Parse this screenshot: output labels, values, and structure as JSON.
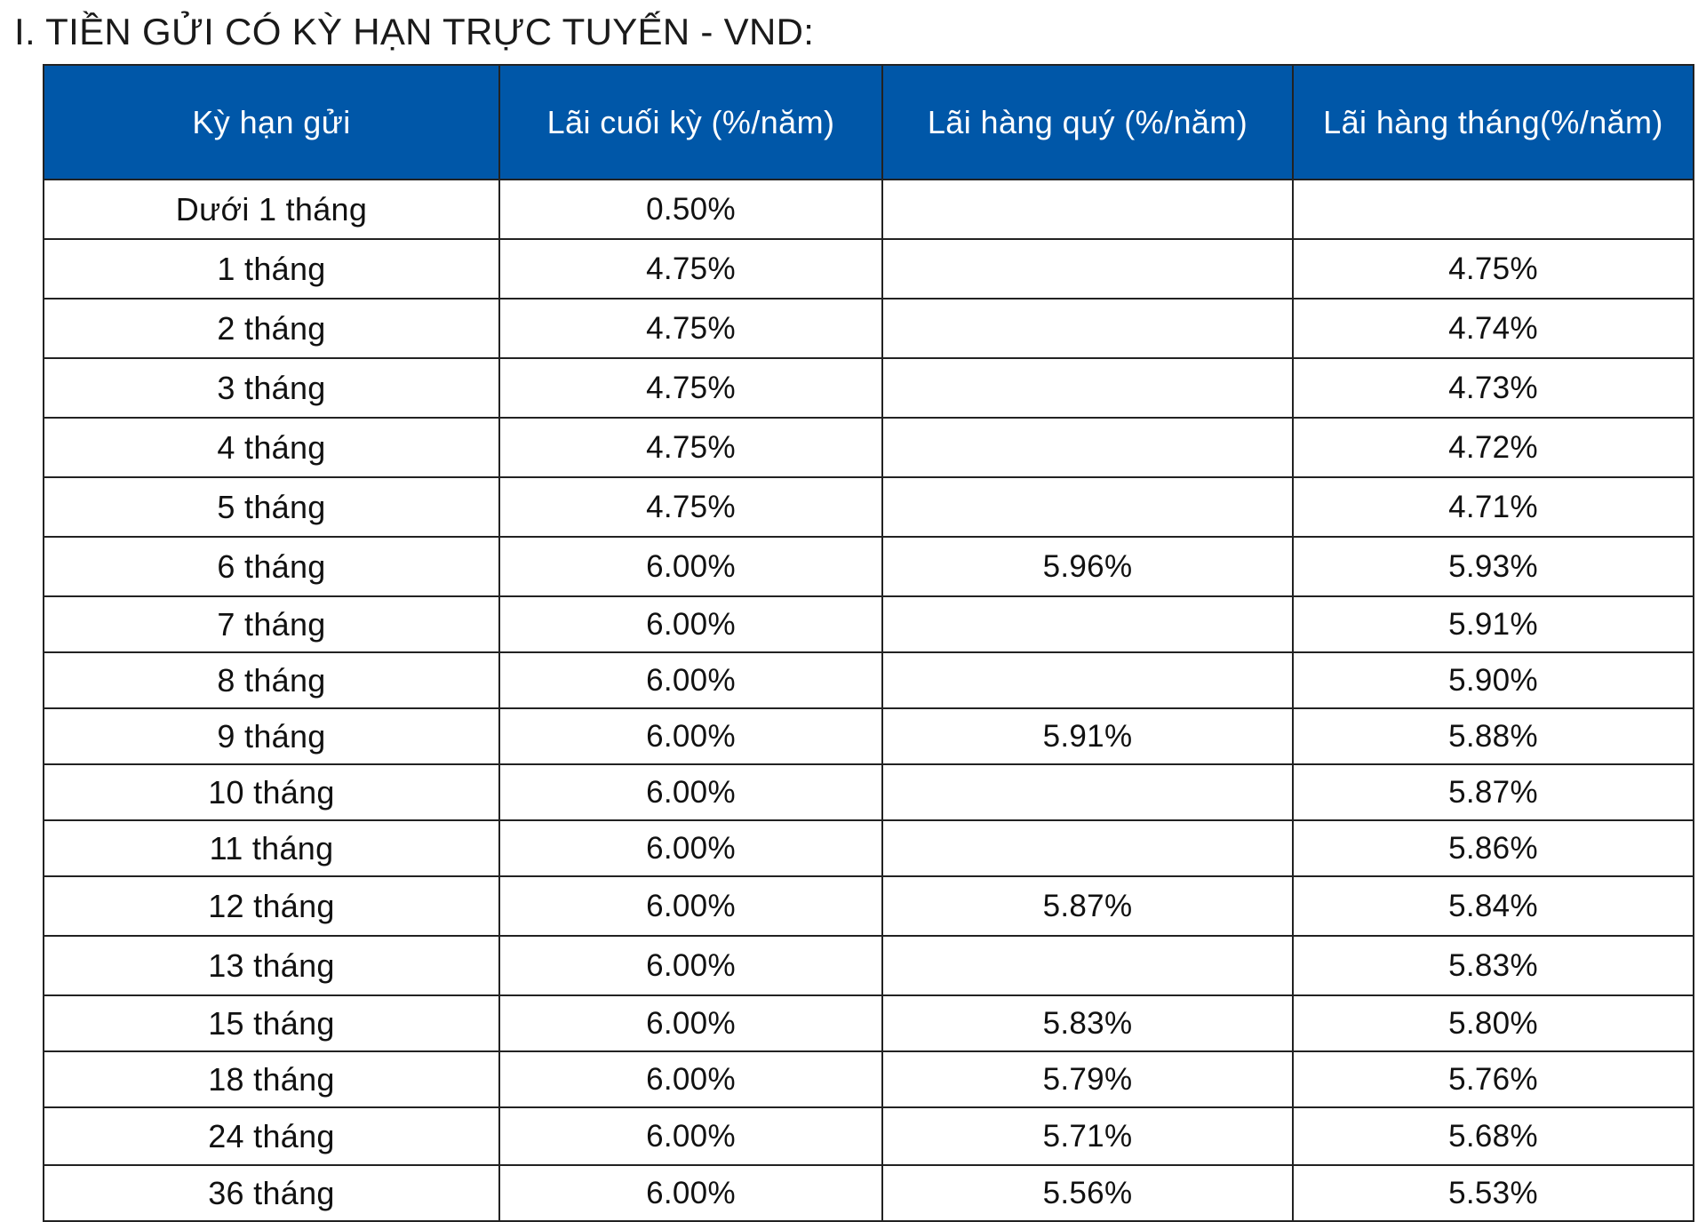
{
  "title": "I. TIỀN GỬI CÓ KỲ HẠN TRỰC TUYẾN - VND:",
  "table": {
    "headers": [
      "Kỳ hạn gửi",
      "Lãi cuối kỳ (%/năm)",
      "Lãi hàng quý (%/năm)",
      "Lãi hàng tháng(%/năm)"
    ],
    "rows": [
      {
        "term": "Dưới 1 tháng",
        "end_of_term": "0.50%",
        "quarterly": "",
        "monthly": ""
      },
      {
        "term": "1 tháng",
        "end_of_term": "4.75%",
        "quarterly": "",
        "monthly": "4.75%"
      },
      {
        "term": "2 tháng",
        "end_of_term": "4.75%",
        "quarterly": "",
        "monthly": "4.74%"
      },
      {
        "term": "3 tháng",
        "end_of_term": "4.75%",
        "quarterly": "",
        "monthly": "4.73%"
      },
      {
        "term": "4 tháng",
        "end_of_term": "4.75%",
        "quarterly": "",
        "monthly": "4.72%"
      },
      {
        "term": "5 tháng",
        "end_of_term": "4.75%",
        "quarterly": "",
        "monthly": "4.71%"
      },
      {
        "term": "6 tháng",
        "end_of_term": "6.00%",
        "quarterly": "5.96%",
        "monthly": "5.93%"
      },
      {
        "term": "7 tháng",
        "end_of_term": "6.00%",
        "quarterly": "",
        "monthly": "5.91%"
      },
      {
        "term": "8 tháng",
        "end_of_term": "6.00%",
        "quarterly": "",
        "monthly": "5.90%"
      },
      {
        "term": "9 tháng",
        "end_of_term": "6.00%",
        "quarterly": "5.91%",
        "monthly": "5.88%"
      },
      {
        "term": "10 tháng",
        "end_of_term": "6.00%",
        "quarterly": "",
        "monthly": "5.87%"
      },
      {
        "term": "11 tháng",
        "end_of_term": "6.00%",
        "quarterly": "",
        "monthly": "5.86%"
      },
      {
        "term": "12 tháng",
        "end_of_term": "6.00%",
        "quarterly": "5.87%",
        "monthly": "5.84%"
      },
      {
        "term": "13 tháng",
        "end_of_term": "6.00%",
        "quarterly": "",
        "monthly": "5.83%"
      },
      {
        "term": "15 tháng",
        "end_of_term": "6.00%",
        "quarterly": "5.83%",
        "monthly": "5.80%"
      },
      {
        "term": "18 tháng",
        "end_of_term": "6.00%",
        "quarterly": "5.79%",
        "monthly": "5.76%"
      },
      {
        "term": "24 tháng",
        "end_of_term": "6.00%",
        "quarterly": "5.71%",
        "monthly": "5.68%"
      },
      {
        "term": "36 tháng",
        "end_of_term": "6.00%",
        "quarterly": "5.56%",
        "monthly": "5.53%"
      }
    ]
  },
  "colors": {
    "header_background": "#0057a8",
    "header_text": "#ffffff",
    "border": "#222222"
  }
}
